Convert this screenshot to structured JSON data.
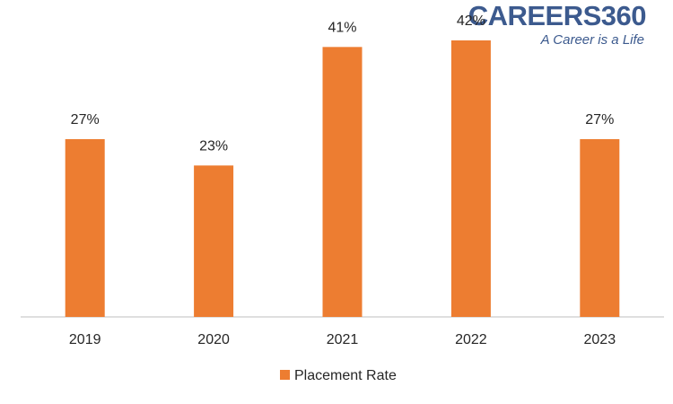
{
  "chart_data": {
    "type": "bar",
    "categories": [
      "2019",
      "2020",
      "2021",
      "2022",
      "2023"
    ],
    "series": [
      {
        "name": "Placement Rate",
        "color": "#ed7d31",
        "values": [
          27,
          23,
          41,
          42,
          27
        ],
        "value_labels": [
          "27%",
          "23%",
          "41%",
          "42%",
          "27%"
        ]
      }
    ],
    "ylim": [
      0,
      45
    ],
    "grid": false,
    "legend": "bottom"
  },
  "logo": {
    "name": "CAREERS360",
    "tagline": "A Career is a Life"
  }
}
